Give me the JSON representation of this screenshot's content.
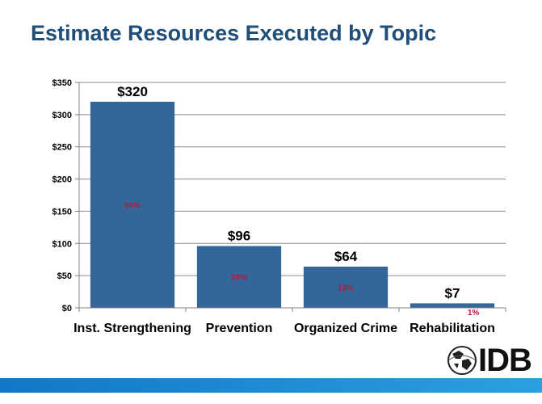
{
  "slide": {
    "title": "Estimate Resources Executed by Topic",
    "logo_text": "IDB",
    "accent_color": "#1f4e79",
    "band_color": "#1a8ad4"
  },
  "chart_data": {
    "type": "bar",
    "title": "",
    "xlabel": "",
    "ylabel": "",
    "categories": [
      "Inst. Strengthening",
      "Prevention",
      "Organized Crime",
      "Rehabilitation"
    ],
    "values": [
      320,
      96,
      64,
      7
    ],
    "value_labels": [
      "$320",
      "$96",
      "$64",
      "$7"
    ],
    "percent_labels": [
      "66%",
      "20%",
      "13%",
      "1%"
    ],
    "ylim": [
      0,
      350
    ],
    "y_ticks": [
      0,
      50,
      100,
      150,
      200,
      250,
      300,
      350
    ],
    "y_tick_labels": [
      "$0",
      "$50",
      "$100",
      "$150",
      "$200",
      "$250",
      "$300",
      "$350"
    ],
    "grid": true,
    "legend": "none",
    "bar_color": "#336699",
    "percent_color": "#c0143c"
  }
}
